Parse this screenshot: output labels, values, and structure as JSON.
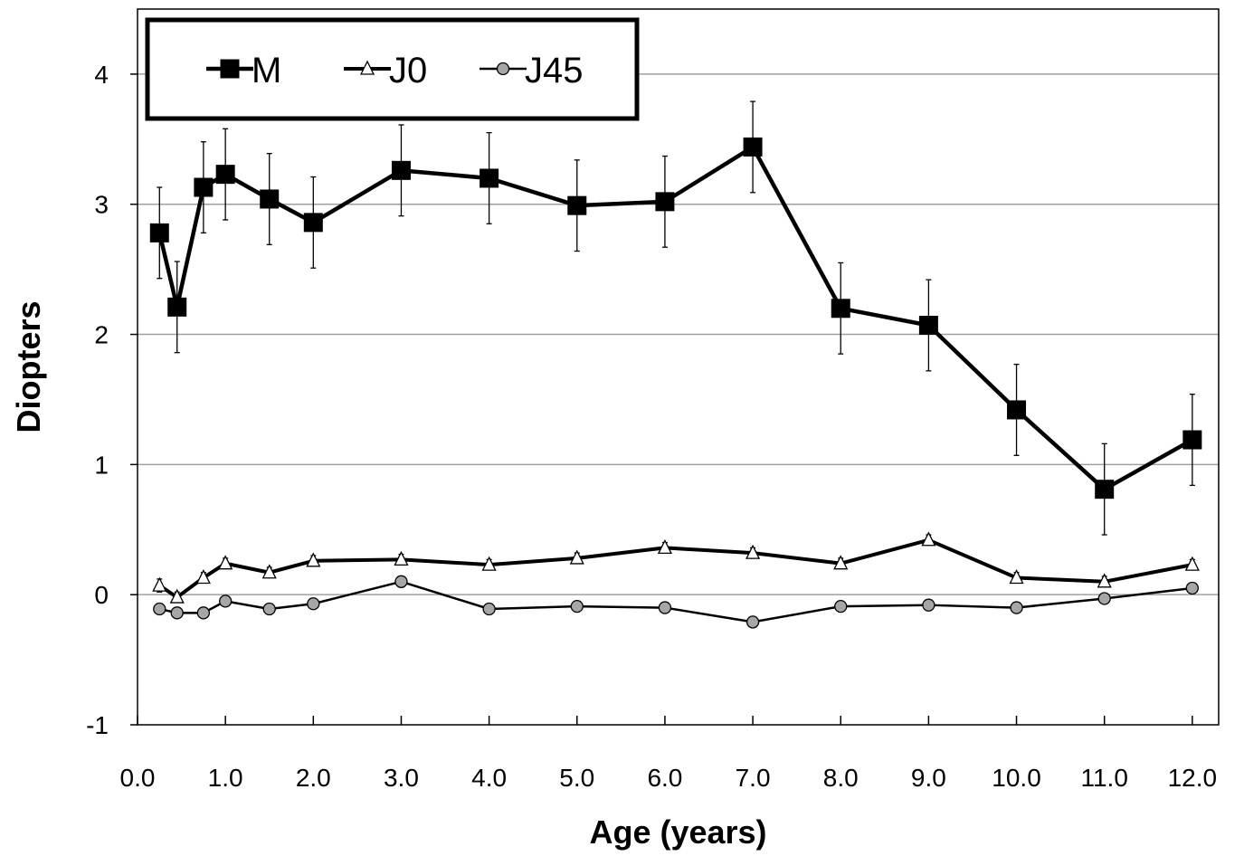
{
  "chart_data": {
    "type": "line",
    "title": "",
    "xlabel": "Age (years)",
    "ylabel": "Diopters",
    "xlim": [
      0.0,
      12.3
    ],
    "ylim": [
      -1,
      4.5
    ],
    "x_ticks": [
      0.0,
      1.0,
      2.0,
      3.0,
      4.0,
      5.0,
      6.0,
      7.0,
      8.0,
      9.0,
      10.0,
      11.0,
      12.0
    ],
    "x_tick_labels": [
      "0.0",
      "1.0",
      "2.0",
      "3.0",
      "4.0",
      "5.0",
      "6.0",
      "7.0",
      "8.0",
      "9.0",
      "10.0",
      "11.0",
      "12.0"
    ],
    "y_ticks": [
      -1,
      0,
      1,
      2,
      3,
      4
    ],
    "y_tick_labels": [
      "-1",
      "0",
      "1",
      "2",
      "3",
      "4"
    ],
    "grid": "horizontal",
    "legend_position": "top-left",
    "series": [
      {
        "name": "M",
        "marker": "square",
        "color": "#000000",
        "x": [
          0.25,
          0.45,
          0.75,
          1.0,
          1.5,
          2.0,
          3.0,
          4.0,
          5.0,
          6.0,
          7.0,
          8.0,
          9.0,
          10.0,
          11.0,
          12.0
        ],
        "y": [
          2.78,
          2.21,
          3.13,
          3.23,
          3.04,
          2.86,
          3.26,
          3.2,
          2.99,
          3.02,
          3.44,
          2.2,
          2.07,
          1.42,
          0.81,
          1.19
        ],
        "error": [
          0.35,
          0.35,
          0.35,
          0.35,
          0.35,
          0.35,
          0.35,
          0.35,
          0.35,
          0.35,
          0.35,
          0.35,
          0.35,
          0.35,
          0.35,
          0.35
        ]
      },
      {
        "name": "J0",
        "marker": "triangle",
        "color": "#000000",
        "x": [
          0.25,
          0.45,
          0.75,
          1.0,
          1.5,
          2.0,
          3.0,
          4.0,
          5.0,
          6.0,
          7.0,
          8.0,
          9.0,
          10.0,
          11.0,
          12.0
        ],
        "y": [
          0.07,
          -0.02,
          0.13,
          0.24,
          0.17,
          0.26,
          0.27,
          0.23,
          0.28,
          0.36,
          0.32,
          0.24,
          0.42,
          0.13,
          0.1,
          0.23
        ],
        "error": [
          0.05,
          0.04,
          0.04,
          0.04,
          0.04,
          0.04,
          0.04,
          0.04,
          0.04,
          0.04,
          0.04,
          0.04,
          0.04,
          0.04,
          0.04,
          0.04
        ]
      },
      {
        "name": "J45",
        "marker": "circle",
        "color": "#a6a6a6",
        "x": [
          0.25,
          0.45,
          0.75,
          1.0,
          1.5,
          2.0,
          3.0,
          4.0,
          5.0,
          6.0,
          7.0,
          8.0,
          9.0,
          10.0,
          11.0,
          12.0
        ],
        "y": [
          -0.11,
          -0.14,
          -0.14,
          -0.05,
          -0.11,
          -0.07,
          0.1,
          -0.11,
          -0.09,
          -0.1,
          -0.21,
          -0.09,
          -0.08,
          -0.1,
          -0.03,
          0.05
        ]
      }
    ]
  }
}
